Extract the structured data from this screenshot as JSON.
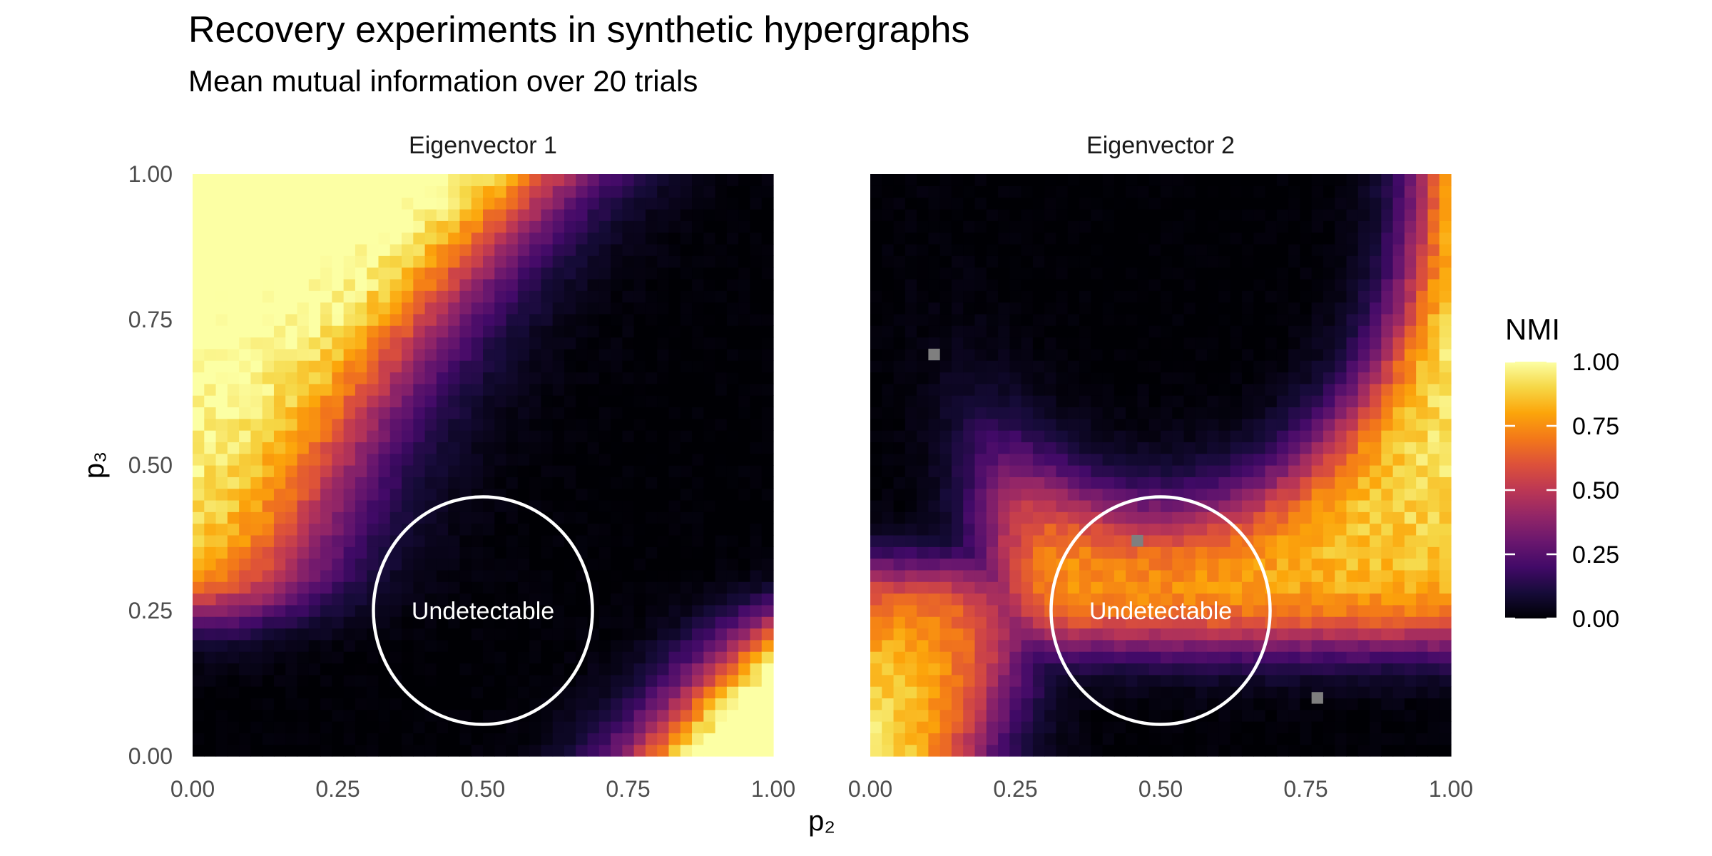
{
  "chart_data": {
    "type": "heatmap",
    "title": "Recovery experiments in synthetic hypergraphs",
    "subtitle": "Mean mutual information over 20 trials",
    "xlabel": "p₂",
    "ylabel": "p₃",
    "xlim": [
      0,
      1
    ],
    "ylim": [
      0,
      1
    ],
    "grid": false,
    "x_ticks": [
      "0.00",
      "0.25",
      "0.50",
      "0.75",
      "1.00"
    ],
    "y_ticks": [
      "0.00",
      "0.25",
      "0.50",
      "0.75",
      "1.00"
    ],
    "grid_cells": 50,
    "colormap": "inferno",
    "colorbar": {
      "title": "NMI",
      "range": [
        0,
        1
      ],
      "ticks": [
        "0.00",
        "0.25",
        "0.50",
        "0.75",
        "1.00"
      ],
      "placement": "right"
    },
    "annotation": {
      "text": "Undetectable",
      "shape": "circle",
      "center": [
        0.5,
        0.25
      ],
      "radius": 0.23
    },
    "panels": [
      {
        "name": "Eigenvector 1",
        "high_region": "upper-left and lower-right",
        "missing_cells": []
      },
      {
        "name": "Eigenvector 2",
        "high_region": "upper-right and lower-left",
        "missing_cells": [
          [
            0.11,
            0.69
          ],
          [
            0.46,
            0.37
          ],
          [
            0.77,
            0.1
          ]
        ]
      }
    ]
  }
}
